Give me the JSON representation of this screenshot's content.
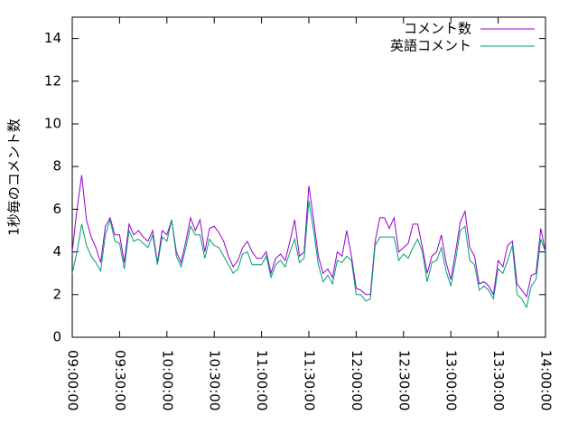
{
  "chart_data": {
    "type": "line",
    "y_label": "1秒毎のコメント数",
    "x": [
      "09:00:00",
      "09:03:00",
      "09:06:00",
      "09:09:00",
      "09:12:00",
      "09:15:00",
      "09:18:00",
      "09:21:00",
      "09:24:00",
      "09:27:00",
      "09:30:00",
      "09:33:00",
      "09:36:00",
      "09:39:00",
      "09:42:00",
      "09:45:00",
      "09:48:00",
      "09:51:00",
      "09:54:00",
      "09:57:00",
      "10:00:00",
      "10:03:00",
      "10:06:00",
      "10:09:00",
      "10:12:00",
      "10:15:00",
      "10:18:00",
      "10:21:00",
      "10:24:00",
      "10:27:00",
      "10:30:00",
      "10:33:00",
      "10:36:00",
      "10:39:00",
      "10:42:00",
      "10:45:00",
      "10:48:00",
      "10:51:00",
      "10:54:00",
      "10:57:00",
      "11:00:00",
      "11:03:00",
      "11:06:00",
      "11:09:00",
      "11:12:00",
      "11:15:00",
      "11:18:00",
      "11:21:00",
      "11:24:00",
      "11:27:00",
      "11:30:00",
      "11:33:00",
      "11:36:00",
      "11:39:00",
      "11:42:00",
      "11:45:00",
      "11:48:00",
      "11:51:00",
      "11:54:00",
      "11:57:00",
      "12:00:00",
      "12:03:00",
      "12:06:00",
      "12:09:00",
      "12:12:00",
      "12:15:00",
      "12:18:00",
      "12:21:00",
      "12:24:00",
      "12:27:00",
      "12:30:00",
      "12:33:00",
      "12:36:00",
      "12:39:00",
      "12:42:00",
      "12:45:00",
      "12:48:00",
      "12:51:00",
      "12:54:00",
      "12:57:00",
      "13:00:00",
      "13:03:00",
      "13:06:00",
      "13:09:00",
      "13:12:00",
      "13:15:00",
      "13:18:00",
      "13:21:00",
      "13:24:00",
      "13:27:00",
      "13:30:00",
      "13:33:00",
      "13:36:00",
      "13:39:00",
      "13:42:00",
      "13:45:00",
      "13:48:00",
      "13:51:00",
      "13:54:00",
      "13:57:00",
      "14:00:00"
    ],
    "series": [
      {
        "name": "コメント数",
        "color": "#9400d3",
        "values": [
          4.0,
          6.0,
          7.6,
          5.5,
          4.7,
          4.2,
          3.5,
          5.2,
          5.6,
          4.8,
          4.8,
          3.5,
          5.3,
          4.8,
          5.0,
          4.7,
          4.5,
          5.0,
          3.5,
          5.0,
          4.8,
          5.5,
          4.0,
          3.5,
          4.5,
          5.6,
          5.0,
          5.5,
          4.0,
          5.1,
          5.2,
          4.9,
          4.5,
          3.8,
          3.3,
          3.6,
          4.2,
          4.5,
          4.0,
          3.7,
          3.7,
          4.0,
          3.0,
          3.7,
          3.9,
          3.6,
          4.5,
          5.5,
          3.8,
          4.0,
          7.1,
          5.5,
          3.8,
          3.0,
          3.2,
          2.8,
          4.0,
          3.8,
          5.0,
          3.8,
          2.3,
          2.2,
          2.0,
          2.0,
          4.5,
          5.6,
          5.6,
          5.1,
          5.6,
          4.0,
          4.2,
          4.4,
          5.3,
          5.3,
          4.2,
          3.0,
          3.8,
          4.0,
          4.8,
          3.5,
          2.7,
          4.0,
          5.4,
          5.9,
          4.2,
          3.8,
          2.5,
          2.6,
          2.4,
          2.0,
          3.6,
          3.3,
          4.3,
          4.5,
          2.5,
          2.2,
          1.9,
          2.9,
          3.0,
          5.1,
          4.0
        ]
      },
      {
        "name": "英語コメント",
        "color": "#009e73",
        "values": [
          3.0,
          4.0,
          5.3,
          4.3,
          3.8,
          3.5,
          3.1,
          4.8,
          5.5,
          4.5,
          4.4,
          3.2,
          5.0,
          4.5,
          4.6,
          4.4,
          4.2,
          4.8,
          3.4,
          4.7,
          4.5,
          5.5,
          3.8,
          3.3,
          4.2,
          5.2,
          4.8,
          4.8,
          3.7,
          4.6,
          4.3,
          4.2,
          3.8,
          3.4,
          3.0,
          3.2,
          3.9,
          4.0,
          3.4,
          3.4,
          3.4,
          3.8,
          2.8,
          3.4,
          3.6,
          3.3,
          4.0,
          4.6,
          3.5,
          3.7,
          6.4,
          5.0,
          3.4,
          2.6,
          2.9,
          2.5,
          3.6,
          3.5,
          3.8,
          3.6,
          2.0,
          2.0,
          1.7,
          1.8,
          4.3,
          4.7,
          4.7,
          4.7,
          4.7,
          3.6,
          3.9,
          3.7,
          4.2,
          4.6,
          4.0,
          2.6,
          3.5,
          3.6,
          4.2,
          3.1,
          2.4,
          3.6,
          5.0,
          5.2,
          3.6,
          3.4,
          2.2,
          2.4,
          2.2,
          1.8,
          3.2,
          3.0,
          3.6,
          4.3,
          2.0,
          1.8,
          1.4,
          2.4,
          2.7,
          4.6,
          4.0
        ]
      }
    ],
    "xlim": [
      "09:00:00",
      "14:00:00"
    ],
    "xticks": [
      "09:00:00",
      "09:30:00",
      "10:00:00",
      "10:30:00",
      "11:00:00",
      "11:30:00",
      "12:00:00",
      "12:30:00",
      "13:00:00",
      "13:30:00",
      "14:00:00"
    ],
    "ylim": [
      0,
      15
    ],
    "yticks": [
      0,
      2,
      4,
      6,
      8,
      10,
      12,
      14
    ],
    "legend": "top-right"
  }
}
